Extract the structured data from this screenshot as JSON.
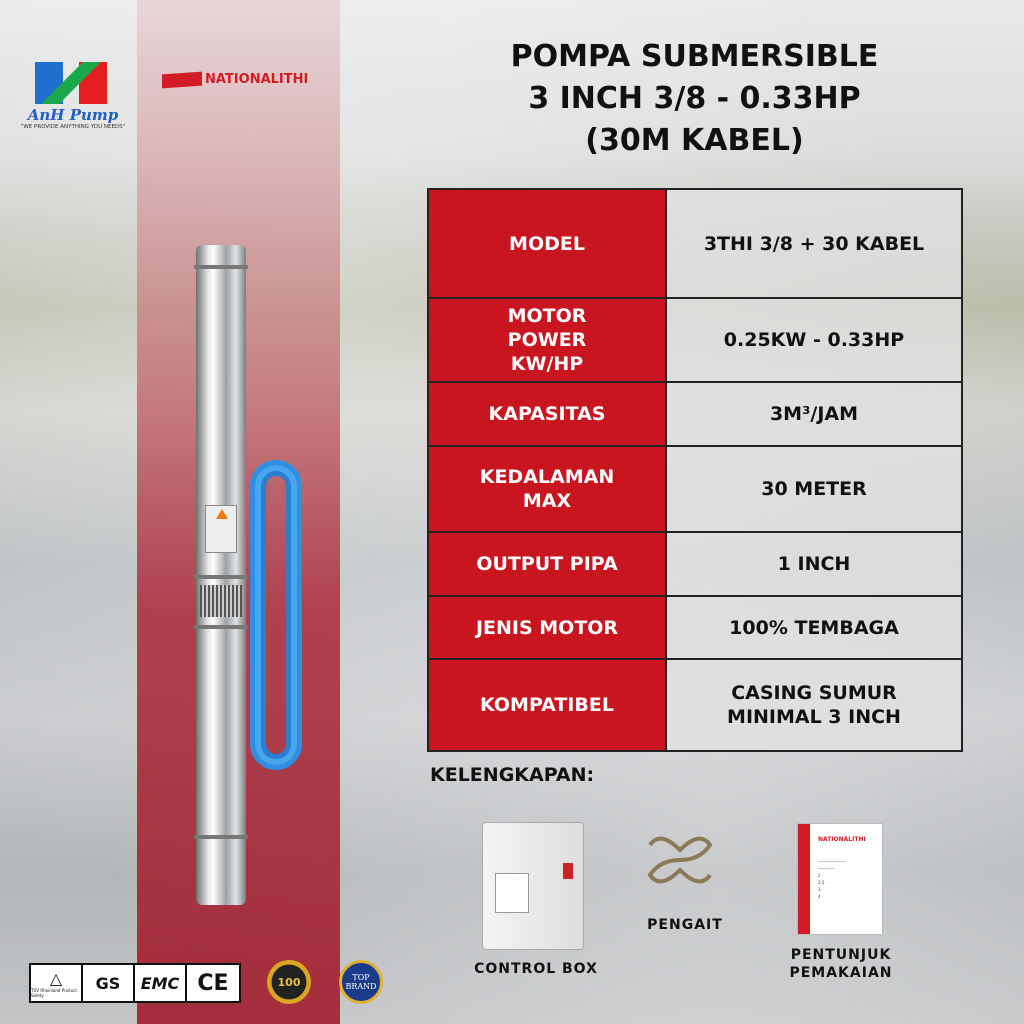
{
  "brand_logo": {
    "name": "AnH Pump",
    "tagline": "\"WE PROVIDE ANYTHING YOU NEEDS\""
  },
  "maker_logo": {
    "name": "NATIONALITHI"
  },
  "title": {
    "line1": "POMPA SUBMERSIBLE",
    "line2": "3 INCH 3/8 - 0.33HP",
    "line3": "(30M KABEL)"
  },
  "specs": [
    {
      "key": "MODEL",
      "value": "3THI 3/8 + 30 KABEL"
    },
    {
      "key": "MOTOR POWER KW/HP",
      "value": "0.25KW - 0.33HP"
    },
    {
      "key": "KAPASITAS",
      "value": "3M³/JAM"
    },
    {
      "key": "KEDALAMAN MAX",
      "value": "30 METER"
    },
    {
      "key": "OUTPUT PIPA",
      "value": "1 INCH"
    },
    {
      "key": "JENIS MOTOR",
      "value": "100% TEMBAGA"
    },
    {
      "key": "KOMPATIBEL",
      "value": "CASING SUMUR MINIMAL 3 INCH"
    }
  ],
  "accessories": {
    "heading": "KELENGKAPAN:",
    "items": [
      "CONTROL BOX",
      "PENGAIT",
      "PENTUNJUK PEMAKAIAN"
    ]
  },
  "certifications": [
    "TÜV Rheinland Product Safety",
    "GS",
    "EMC",
    "CE"
  ],
  "badges": [
    "100",
    "TOP BRAND"
  ],
  "colors": {
    "accent_red": "#c8151f",
    "brand_red": "#d21c24"
  }
}
